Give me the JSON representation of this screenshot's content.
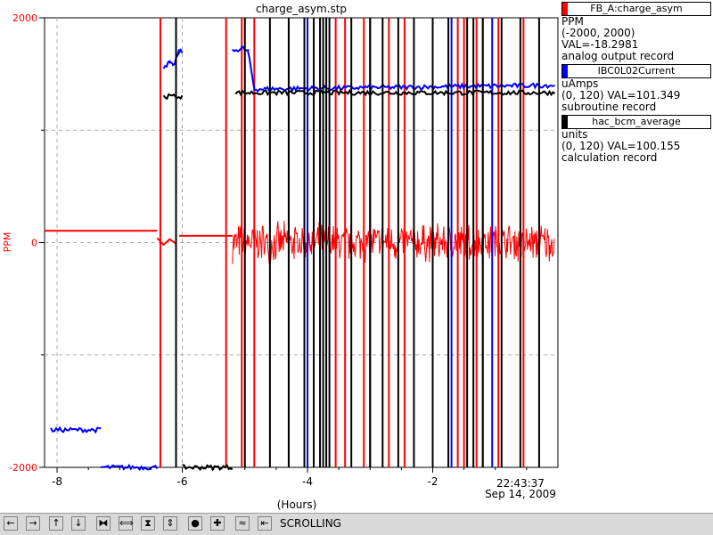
{
  "chart_data": {
    "type": "line",
    "title": "charge_asym.stp",
    "xlabel": "(Hours)",
    "ylabel": "PPM",
    "xlim": [
      -8.2,
      0
    ],
    "ylim": [
      -2000,
      2000
    ],
    "x_ticks": [
      "-8",
      "-6",
      "-4",
      "-2"
    ],
    "y_ticks": [
      "2000",
      "0",
      "-2000"
    ],
    "time_label": "22:43:37",
    "date_label": "Sep 14, 2009",
    "grid": true,
    "series": [
      {
        "name": "FB_A:charge_asym",
        "color": "#ff0000",
        "axis": "left",
        "segments": [
          {
            "x": [
              -8.2,
              -6.4
            ],
            "y": [
              105,
              105
            ]
          },
          {
            "x": [
              -6.4,
              -6.3,
              -6.2,
              -6.1
            ],
            "y": [
              40,
              -20,
              30,
              -10
            ]
          },
          {
            "x": [
              -6.05,
              -5.2
            ],
            "y": [
              60,
              60
            ]
          },
          {
            "x": [
              -5.2,
              -0.05
            ],
            "y": [
              0,
              0
            ],
            "noise_amplitude": 200
          }
        ],
        "spikes_x": [
          -6.35,
          -5.3,
          -5.05,
          -4.85,
          -4.3,
          -3.55,
          -3.4,
          -3.1,
          -2.7,
          -2.45,
          -1.6,
          -1.5,
          -1.3,
          -1.2,
          -0.95,
          -0.55
        ]
      },
      {
        "name": "IBC0L02Current",
        "color": "#0000ff",
        "axis": "right",
        "segments": [
          {
            "x": [
              -8.1,
              -7.3
            ],
            "y": [
              10,
              10
            ]
          },
          {
            "x": [
              -7.3,
              -6.4
            ],
            "y": [
              0,
              0
            ]
          },
          {
            "x": [
              -6.3,
              -6.2,
              -6.15,
              -6.05,
              -6.0
            ],
            "y": [
              107,
              108,
              107,
              111,
              111
            ]
          },
          {
            "x": [
              -5.2,
              -5.05,
              -4.95,
              -4.85,
              -4.7
            ],
            "y": [
              111,
              112,
              111,
              101,
              101
            ]
          },
          {
            "x": [
              -4.7,
              -0.05
            ],
            "y": [
              101,
              102
            ]
          }
        ],
        "spikes_x": [
          -4.0,
          -3.0,
          -1.7,
          -1.05
        ]
      },
      {
        "name": "hac_bcm_average",
        "color": "#000000",
        "axis": "right",
        "segments": [
          {
            "x": [
              -6.3,
              -6.0
            ],
            "y": [
              99,
              99
            ]
          },
          {
            "x": [
              -6.0,
              -5.2
            ],
            "y": [
              0,
              0
            ]
          },
          {
            "x": [
              -5.15,
              -0.05
            ],
            "y": [
              100,
              100
            ]
          }
        ],
        "spikes_x": [
          -6.1,
          -5.0,
          -4.6,
          -4.3,
          -4.05,
          -3.9,
          -3.8,
          -3.75,
          -3.7,
          -3.65,
          -3.3,
          -3.0,
          -2.8,
          -2.55,
          -2.3,
          -2.0,
          -1.75,
          -1.45,
          -1.35,
          -1.2,
          -0.9,
          -0.6,
          -0.3
        ]
      }
    ]
  },
  "legend": [
    {
      "name": "FB_A:charge_asym",
      "color": "#ff0000",
      "units": "PPM",
      "range_val": "(-2000, 2000) VAL=-18.2981",
      "record": "analog output record"
    },
    {
      "name": "IBC0L02Current",
      "color": "#0000ff",
      "units": "uAmps",
      "range_val": "(0, 120) VAL=101.349",
      "record": "subroutine record"
    },
    {
      "name": "hac_bcm_average",
      "color": "#000000",
      "units": "units",
      "range_val": "(0, 120) VAL=100.155",
      "record": "calculation record"
    }
  ],
  "toolbar": {
    "buttons": [
      {
        "name": "scroll-left-button",
        "glyph": "←"
      },
      {
        "name": "scroll-right-button",
        "glyph": "→"
      },
      {
        "name": "scroll-up-button",
        "glyph": "↑"
      },
      {
        "name": "scroll-down-button",
        "glyph": "↓"
      },
      {
        "name": "zoom-in-x-button",
        "glyph": "⧓"
      },
      {
        "name": "zoom-out-x-button",
        "glyph": "⟺"
      },
      {
        "name": "zoom-in-y-button",
        "glyph": "⧗"
      },
      {
        "name": "zoom-out-y-button",
        "glyph": "⇕"
      },
      {
        "name": "center-button",
        "glyph": "●"
      },
      {
        "name": "add-button",
        "glyph": "✚"
      },
      {
        "name": "autoscale-button",
        "glyph": "≈"
      },
      {
        "name": "back-button",
        "glyph": "⇤"
      }
    ],
    "mode_label": "SCROLLING"
  }
}
